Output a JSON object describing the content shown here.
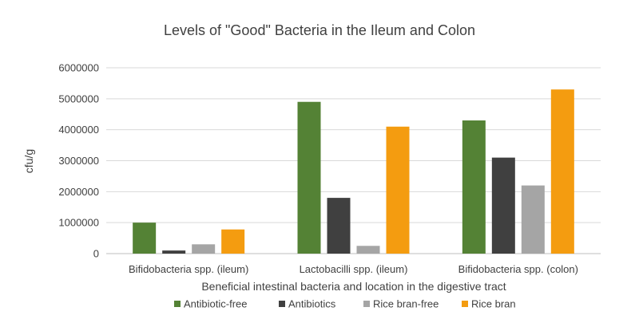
{
  "chart_data": {
    "type": "bar",
    "title": "Levels of \"Good\" Bacteria in the Ileum and Colon",
    "xlabel": "Beneficial intestinal bacteria and location in the digestive tract",
    "ylabel": "cfu/g",
    "ylim": [
      0,
      6000000
    ],
    "yticks": [
      "0",
      "1000000",
      "2000000",
      "3000000",
      "4000000",
      "5000000",
      "6000000"
    ],
    "grid": true,
    "legend_position": "bottom",
    "categories": [
      "Bifidobacteria spp. (ileum)",
      "Lactobacilli spp. (ileum)",
      "Bifidobacteria spp. (colon)"
    ],
    "series": [
      {
        "name": "Antibiotic-free",
        "color": "#548235",
        "values": [
          1000000,
          4900000,
          4300000
        ]
      },
      {
        "name": "Antibiotics",
        "color": "#404040",
        "values": [
          100000,
          1800000,
          3100000
        ]
      },
      {
        "name": "Rice bran-free",
        "color": "#a5a5a5",
        "values": [
          300000,
          250000,
          2200000
        ]
      },
      {
        "name": "Rice bran",
        "color": "#f49c10",
        "values": [
          780000,
          4100000,
          5300000
        ]
      }
    ]
  }
}
